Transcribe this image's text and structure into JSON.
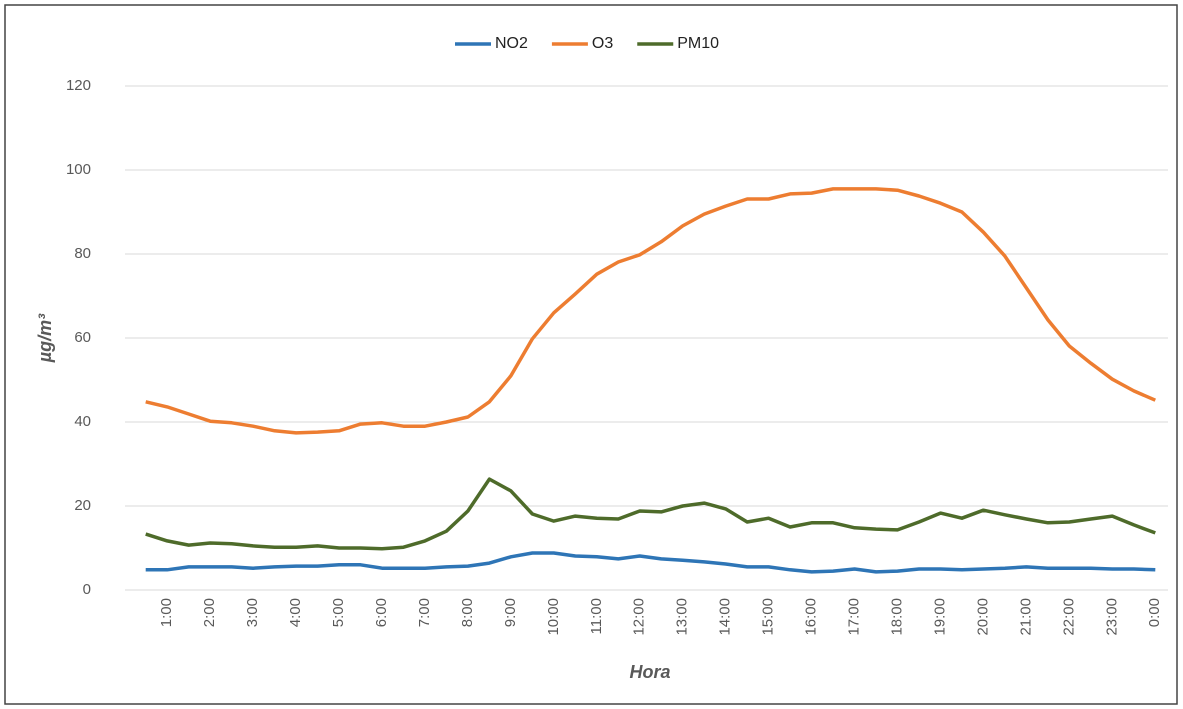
{
  "chart_data": {
    "type": "line",
    "x_label": "Hora",
    "y_label": "µg/m³",
    "categories": [
      null,
      "1:00",
      null,
      "2:00",
      null,
      "3:00",
      null,
      "4:00",
      null,
      "5:00",
      null,
      "6:00",
      null,
      "7:00",
      null,
      "8:00",
      null,
      "9:00",
      null,
      "10:00",
      null,
      "11:00",
      null,
      "12:00",
      null,
      "13:00",
      null,
      "14:00",
      null,
      "15:00",
      null,
      "16:00",
      null,
      "17:00",
      null,
      "18:00",
      null,
      "19:00",
      null,
      "20:00",
      null,
      "21:00",
      null,
      "22:00",
      null,
      "23:00",
      null,
      "0:00"
    ],
    "series": [
      {
        "name": "NO2",
        "color": "#2e75b6",
        "values": [
          4.8,
          4.8,
          5.5,
          5.5,
          5.5,
          5.2,
          5.5,
          5.7,
          5.7,
          6.0,
          6.0,
          5.2,
          5.2,
          5.2,
          5.5,
          5.7,
          6.4,
          7.9,
          8.8,
          8.8,
          8.1,
          7.9,
          7.4,
          8.1,
          7.4,
          7.1,
          6.7,
          6.2,
          5.5,
          5.5,
          4.8,
          4.3,
          4.5,
          5.0,
          4.3,
          4.5,
          5.0,
          5.0,
          4.8,
          5.0,
          5.2,
          5.5,
          5.2,
          5.2,
          5.2,
          5.0,
          5.0,
          4.8
        ]
      },
      {
        "name": "O3",
        "color": "#ed7d31",
        "values": [
          44.8,
          43.6,
          41.9,
          40.2,
          39.8,
          39.0,
          37.9,
          37.4,
          37.6,
          37.9,
          39.5,
          39.8,
          39.0,
          39.0,
          40.0,
          41.2,
          44.8,
          51.0,
          59.8,
          66.0,
          70.5,
          75.2,
          78.1,
          79.8,
          82.9,
          86.7,
          89.5,
          91.4,
          93.1,
          93.1,
          94.3,
          94.5,
          95.5,
          95.5,
          95.5,
          95.2,
          93.8,
          92.1,
          90.0,
          85.2,
          79.5,
          71.9,
          64.3,
          58.1,
          54.0,
          50.2,
          47.4,
          45.2
        ]
      },
      {
        "name": "PM10",
        "color": "#4e6b2a",
        "values": [
          13.3,
          11.7,
          10.7,
          11.2,
          11.0,
          10.5,
          10.2,
          10.2,
          10.5,
          10.0,
          10.0,
          9.8,
          10.2,
          11.7,
          14.0,
          18.8,
          26.4,
          23.6,
          18.1,
          16.4,
          17.6,
          17.1,
          16.9,
          18.8,
          18.6,
          20.0,
          20.7,
          19.3,
          16.2,
          17.1,
          15.0,
          16.0,
          16.0,
          14.8,
          14.5,
          14.3,
          16.2,
          18.3,
          17.1,
          19.0,
          17.9,
          16.9,
          16.0,
          16.2,
          16.9,
          17.6,
          15.5,
          13.6
        ]
      }
    ],
    "ylim": [
      0,
      120
    ],
    "yticks": [
      0,
      20,
      40,
      60,
      80,
      100,
      120
    ],
    "grid": true,
    "legend": "top"
  }
}
